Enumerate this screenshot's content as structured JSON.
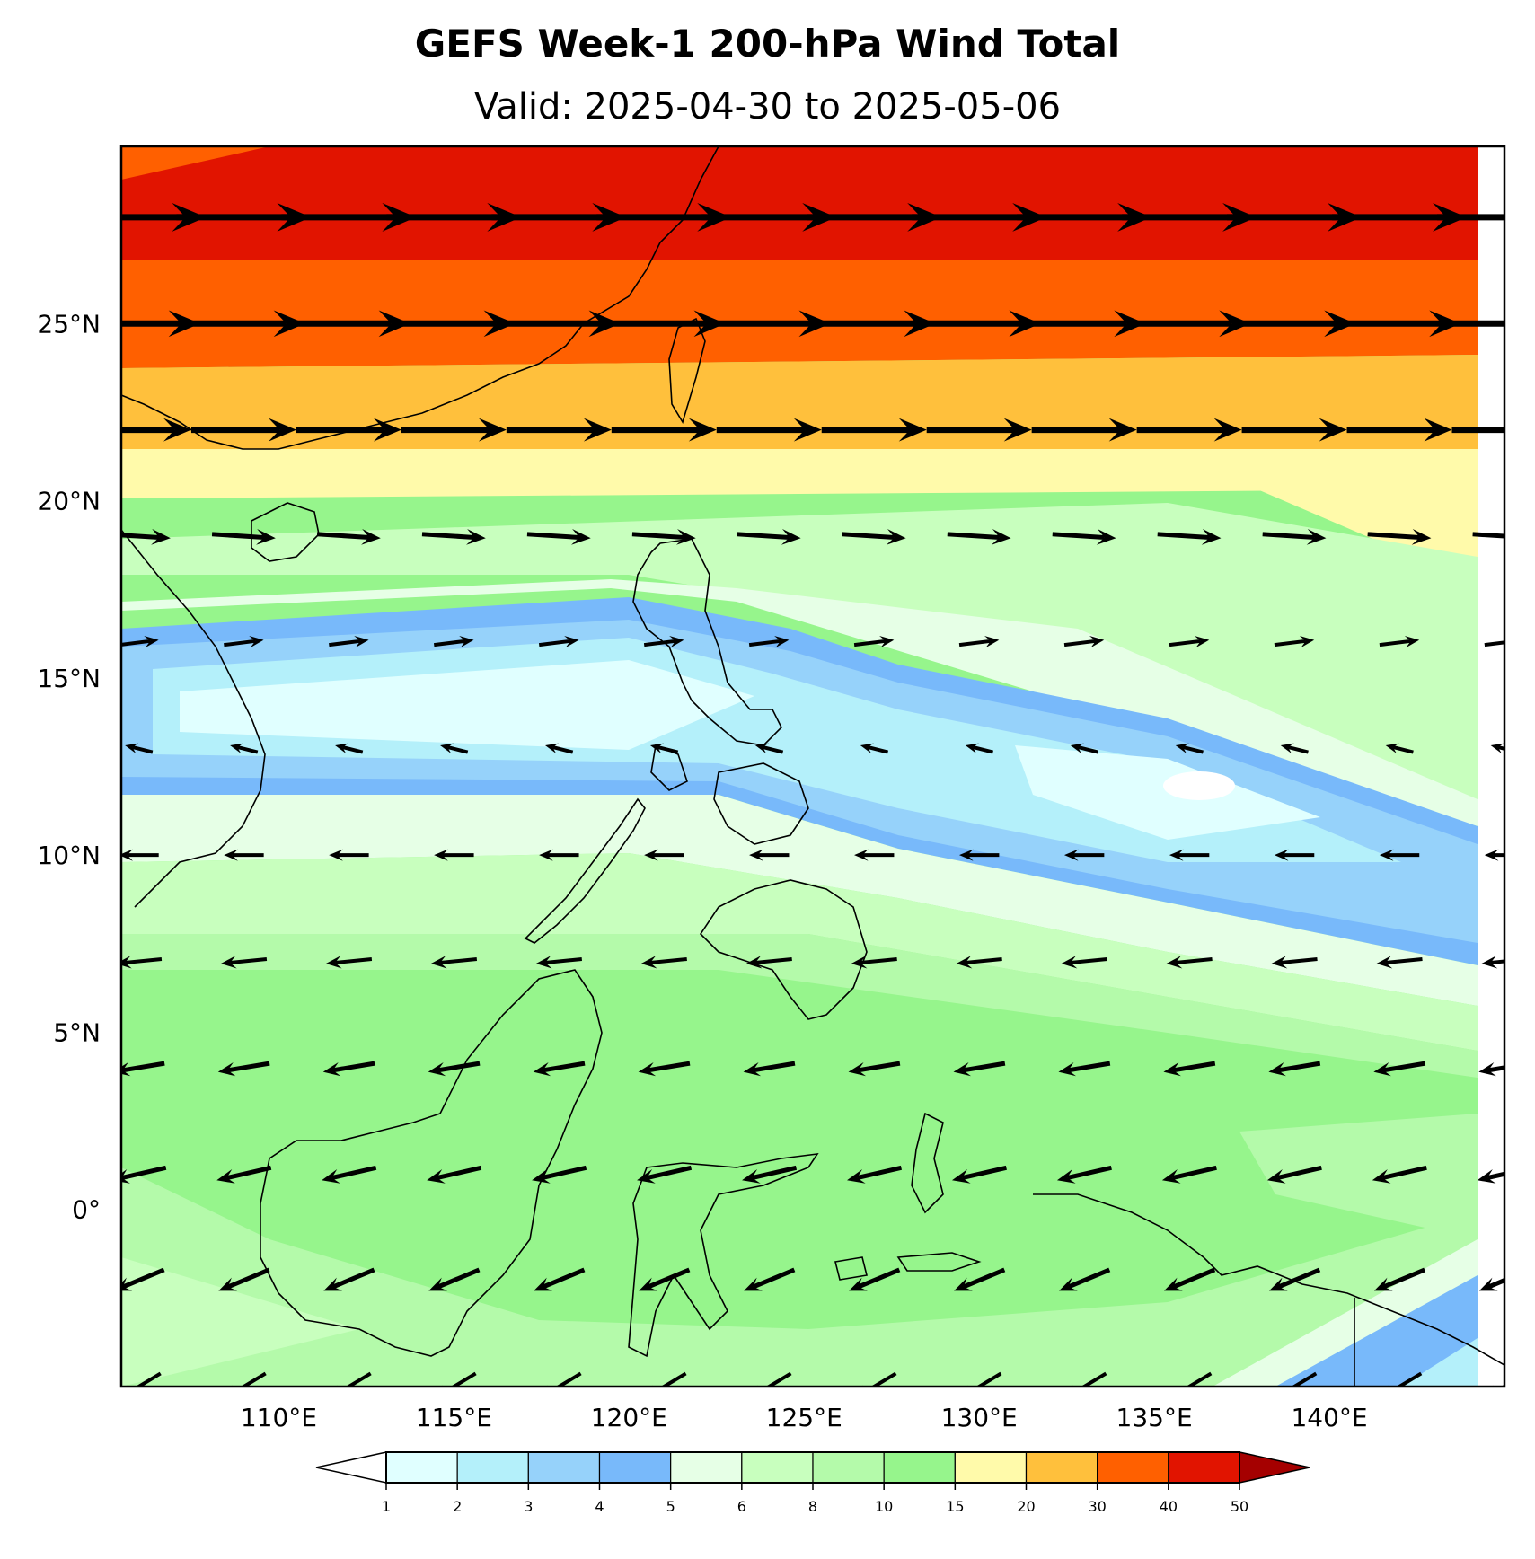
{
  "header": {
    "title": "GEFS Week-1 200-hPa Wind Total",
    "subtitle": "Valid: 2025-04-30 to 2025-05-06"
  },
  "map": {
    "extent": {
      "lon_min": 105.5,
      "lon_max": 145,
      "lat_min": -5,
      "lat_max": 30
    },
    "lat_ticks": [
      {
        "value": 25,
        "label": "25°N"
      },
      {
        "value": 20,
        "label": "20°N"
      },
      {
        "value": 15,
        "label": "15°N"
      },
      {
        "value": 10,
        "label": "10°N"
      },
      {
        "value": 5,
        "label": "5°N"
      },
      {
        "value": 0,
        "label": "0°"
      }
    ],
    "lon_ticks": [
      {
        "value": 110,
        "label": "110°E"
      },
      {
        "value": 115,
        "label": "115°E"
      },
      {
        "value": 120,
        "label": "120°E"
      },
      {
        "value": 125,
        "label": "125°E"
      },
      {
        "value": 130,
        "label": "130°E"
      },
      {
        "value": 135,
        "label": "135°E"
      },
      {
        "value": 140,
        "label": "140°E"
      }
    ],
    "wind_rows": [
      {
        "lat": 28,
        "u": 40,
        "v": 0
      },
      {
        "lat": 25,
        "u": 36,
        "v": 0
      },
      {
        "lat": 22,
        "u": 30,
        "v": 0
      },
      {
        "lat": 19,
        "u": 16,
        "v": -1
      },
      {
        "lat": 16,
        "u": 8,
        "v": 1
      },
      {
        "lat": 13,
        "u": -4,
        "v": 1
      },
      {
        "lat": 10,
        "u": -8,
        "v": 0
      },
      {
        "lat": 7,
        "u": -10,
        "v": -1
      },
      {
        "lat": 4,
        "u": -12,
        "v": -2
      },
      {
        "lat": 1,
        "u": -13,
        "v": -3
      },
      {
        "lat": -2,
        "u": -12,
        "v": -5
      },
      {
        "lat": -5,
        "u": -10,
        "v": -6
      }
    ]
  },
  "colorbar": {
    "ticks": [
      "1",
      "2",
      "3",
      "4",
      "5",
      "6",
      "8",
      "10",
      "15",
      "20",
      "30",
      "40",
      "50"
    ],
    "colors": [
      "#e0ffff",
      "#b4f0fa",
      "#96d2fa",
      "#78b9fa",
      "#e6ffe6",
      "#c8ffbe",
      "#b4faaa",
      "#96f58c",
      "#fffaaa",
      "#ffc03c",
      "#ff6000",
      "#e11400"
    ],
    "under_color": "#ffffff",
    "over_color": "#a50000"
  }
}
